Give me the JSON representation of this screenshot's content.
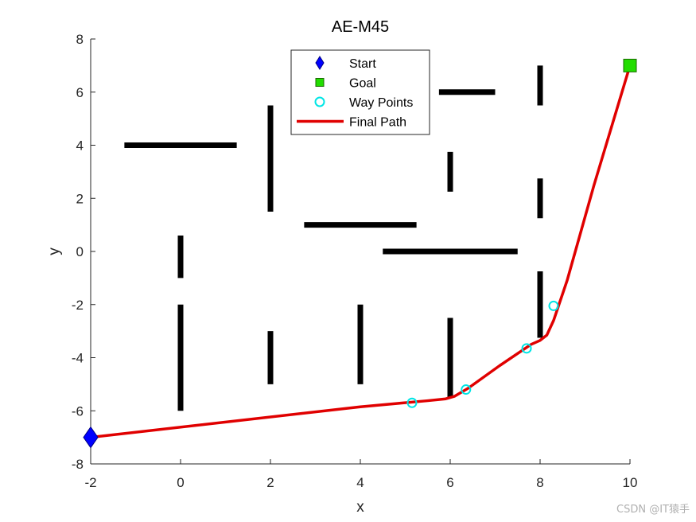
{
  "watermark": "CSDN @IT猿手",
  "chart_data": {
    "type": "line",
    "title": "AE-M45",
    "xlabel": "x",
    "ylabel": "y",
    "xlim": [
      -2,
      10
    ],
    "ylim": [
      -8,
      8
    ],
    "xticks": [
      -2,
      0,
      2,
      4,
      6,
      8,
      10
    ],
    "yticks": [
      -8,
      -6,
      -4,
      -2,
      0,
      2,
      4,
      6,
      8
    ],
    "grid": false,
    "legend_position": "top-center",
    "obstacles": [
      {
        "x": [
          -1.25,
          1.25
        ],
        "y": [
          4,
          4
        ]
      },
      {
        "x": [
          2,
          2
        ],
        "y": [
          1.5,
          5.5
        ]
      },
      {
        "x": [
          2.75,
          5.25
        ],
        "y": [
          1,
          1
        ]
      },
      {
        "x": [
          5.75,
          7
        ],
        "y": [
          6,
          6
        ]
      },
      {
        "x": [
          6,
          6
        ],
        "y": [
          2.25,
          3.75
        ]
      },
      {
        "x": [
          8,
          8
        ],
        "y": [
          5.5,
          7
        ]
      },
      {
        "x": [
          8,
          8
        ],
        "y": [
          1.25,
          2.75
        ]
      },
      {
        "x": [
          4.5,
          7.5
        ],
        "y": [
          0,
          0
        ]
      },
      {
        "x": [
          0,
          0
        ],
        "y": [
          -1,
          0.6
        ]
      },
      {
        "x": [
          0,
          0
        ],
        "y": [
          -6,
          -2
        ]
      },
      {
        "x": [
          2,
          2
        ],
        "y": [
          -5,
          -3
        ]
      },
      {
        "x": [
          4,
          4
        ],
        "y": [
          -5,
          -2
        ]
      },
      {
        "x": [
          6,
          6
        ],
        "y": [
          -5.5,
          -2.5
        ]
      },
      {
        "x": [
          8,
          8
        ],
        "y": [
          -3.25,
          -0.75
        ]
      }
    ],
    "series": [
      {
        "name": "Start",
        "marker": "diamond",
        "color": "#0000ff",
        "x": [
          -2
        ],
        "y": [
          -7
        ]
      },
      {
        "name": "Goal",
        "marker": "square",
        "color": "#22dd00",
        "x": [
          10
        ],
        "y": [
          7
        ]
      },
      {
        "name": "Way Points",
        "marker": "circle",
        "color": "#00e5e5",
        "x": [
          5.15,
          6.35,
          7.7,
          8.3
        ],
        "y": [
          -5.7,
          -5.2,
          -3.65,
          -2.05
        ]
      },
      {
        "name": "Final Path",
        "marker": "line",
        "color": "#e00000",
        "x": [
          -2,
          4.0,
          5.5,
          5.9,
          6.1,
          6.4,
          7.1,
          7.8,
          8.0,
          8.15,
          8.3,
          8.6,
          9.2,
          10
        ],
        "y": [
          -7,
          -5.85,
          -5.62,
          -5.55,
          -5.45,
          -5.15,
          -4.3,
          -3.5,
          -3.35,
          -3.15,
          -2.6,
          -1.1,
          2.5,
          7
        ]
      }
    ]
  }
}
